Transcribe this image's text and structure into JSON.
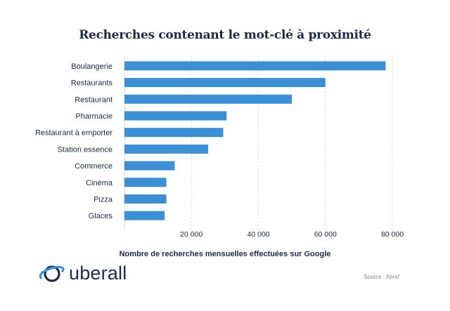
{
  "chart_data": {
    "type": "bar",
    "orientation": "horizontal",
    "title": "Recherches contenant le mot-clé à proximité",
    "xlabel": "Nombre de recherches mensuelles effectuées sur Google",
    "ylabel": "",
    "categories": [
      "Boulangerie",
      "Restaurants",
      "Restaurant",
      "Pharmacie",
      "Restaurant à emporter",
      "Station essence",
      "Commerce",
      "Cinéma",
      "Pizza",
      "Glaces"
    ],
    "values": [
      78000,
      60000,
      50000,
      30500,
      29500,
      25000,
      15000,
      12500,
      12500,
      12000
    ],
    "xlim": [
      0,
      85000
    ],
    "xticks": [
      20000,
      40000,
      60000,
      80000
    ],
    "xtick_labels": [
      "20 000",
      "40 000",
      "60 000",
      "80 000"
    ],
    "bar_color": "#3b8fd4",
    "grid": "vertical-dashed",
    "legend": "none"
  },
  "brand": {
    "name": "uberall",
    "color": "#1b2a49",
    "accent": "#3b8fd4"
  },
  "source": "Source : Ahref"
}
